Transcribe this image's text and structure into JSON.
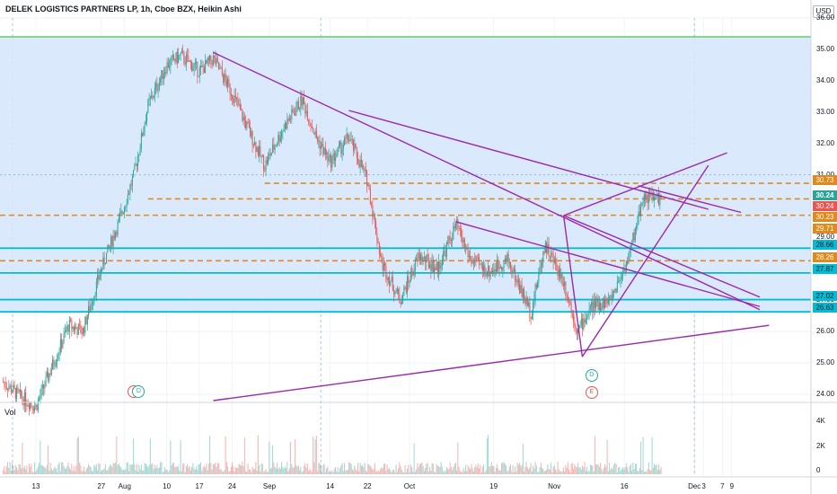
{
  "header": {
    "title": "DELEK LOGISTICS PARTNERS LP, 1h, Cboe BZX, Heikin Ashi",
    "currency": "USD",
    "volume_label": "Vol"
  },
  "colors": {
    "up": "#26a69a",
    "down": "#ef5350",
    "zone_fill": "#d3e6fb",
    "trendline": "#9c27b0",
    "support_line": "#00bcd4",
    "dashed_level": "#e08a1e",
    "green_line": "#66cc66"
  },
  "chart_data": {
    "type": "candlestick",
    "symbol": "DELEK LOGISTICS PARTNERS LP",
    "interval": "1h",
    "exchange": "Cboe BZX",
    "style": "Heikin Ashi",
    "ylim": [
      23.8,
      36.0
    ],
    "price_ticks": [
      "36.00",
      "35.00",
      "34.00",
      "33.00",
      "32.00",
      "31.00",
      "30.00",
      "29.00",
      "28.00",
      "27.00",
      "26.00",
      "25.00",
      "24.00"
    ],
    "time_ticks": [
      "13",
      "27",
      "Aug",
      "10",
      "17",
      "24",
      "Sep",
      "14",
      "22",
      "Oct",
      "19",
      "Nov",
      "16",
      "Dec",
      "3",
      "7",
      "9"
    ],
    "volume_ticks": [
      "4K",
      "2K",
      "0"
    ],
    "price_labels": [
      {
        "text": "30.73",
        "style": "dashed_level"
      },
      {
        "text": "30.24",
        "style": "last"
      },
      {
        "text": "30.24",
        "style": "down"
      },
      {
        "text": "30.23",
        "style": "dashed_level"
      },
      {
        "text": "29.71",
        "style": "dashed_level"
      },
      {
        "text": "28.66",
        "style": "support_line"
      },
      {
        "text": "28.26",
        "style": "dashed_level"
      },
      {
        "text": "27.87",
        "style": "support_line"
      },
      {
        "text": "27.02",
        "style": "support_line"
      },
      {
        "text": "26.63",
        "style": "support_line"
      }
    ],
    "horizontal_levels": {
      "resistance_green": 35.4,
      "zone_top": 35.4,
      "zone_bottom": 26.63,
      "support": [
        28.66,
        27.87,
        27.02,
        26.63
      ],
      "dashed": [
        30.73,
        30.23,
        29.71,
        28.26
      ]
    },
    "path_keypoints": [
      {
        "t": "Jul 6",
        "p": 24.4
      },
      {
        "t": "Jul 9",
        "p": 24.0
      },
      {
        "t": "Jul 13",
        "p": 23.6
      },
      {
        "t": "Jul 20",
        "p": 26.2
      },
      {
        "t": "Jul 23",
        "p": 26.0
      },
      {
        "t": "Jul 27",
        "p": 28.0
      },
      {
        "t": "Jul 31",
        "p": 29.6
      },
      {
        "t": "Aug 3",
        "p": 31.0
      },
      {
        "t": "Aug 6",
        "p": 33.2
      },
      {
        "t": "Aug 10",
        "p": 34.5
      },
      {
        "t": "Aug 13",
        "p": 34.8
      },
      {
        "t": "Aug 17",
        "p": 34.3
      },
      {
        "t": "Aug 20",
        "p": 34.7
      },
      {
        "t": "Aug 24",
        "p": 33.6
      },
      {
        "t": "Aug 27",
        "p": 32.6
      },
      {
        "t": "Aug 31",
        "p": 31.3
      },
      {
        "t": "Sep 4",
        "p": 32.5
      },
      {
        "t": "Sep 8",
        "p": 33.4
      },
      {
        "t": "Sep 11",
        "p": 32.2
      },
      {
        "t": "Sep 14",
        "p": 31.4
      },
      {
        "t": "Sep 18",
        "p": 32.2
      },
      {
        "t": "Sep 22",
        "p": 30.8
      },
      {
        "t": "Sep 25",
        "p": 28.2
      },
      {
        "t": "Sep 29",
        "p": 27.0
      },
      {
        "t": "Oct 3",
        "p": 28.4
      },
      {
        "t": "Oct 7",
        "p": 28.0
      },
      {
        "t": "Oct 11",
        "p": 29.4
      },
      {
        "t": "Oct 14",
        "p": 28.3
      },
      {
        "t": "Oct 18",
        "p": 27.9
      },
      {
        "t": "Oct 22",
        "p": 28.3
      },
      {
        "t": "Oct 27",
        "p": 26.6
      },
      {
        "t": "Oct 30",
        "p": 28.8
      },
      {
        "t": "Nov 3",
        "p": 27.6
      },
      {
        "t": "Nov 6",
        "p": 26.0
      },
      {
        "t": "Nov 9",
        "p": 26.8
      },
      {
        "t": "Nov 13",
        "p": 27.0
      },
      {
        "t": "Nov 17",
        "p": 28.4
      },
      {
        "t": "Nov 20",
        "p": 30.3
      },
      {
        "t": "Nov 24",
        "p": 30.24
      }
    ],
    "event_markers": [
      {
        "label": "E",
        "t": "Aug 3",
        "type": "earnings"
      },
      {
        "label": "D",
        "t": "Aug 4",
        "type": "dividend"
      },
      {
        "label": "D",
        "t": "Nov 9",
        "type": "dividend"
      },
      {
        "label": "E",
        "t": "Nov 9",
        "type": "earnings"
      }
    ]
  }
}
